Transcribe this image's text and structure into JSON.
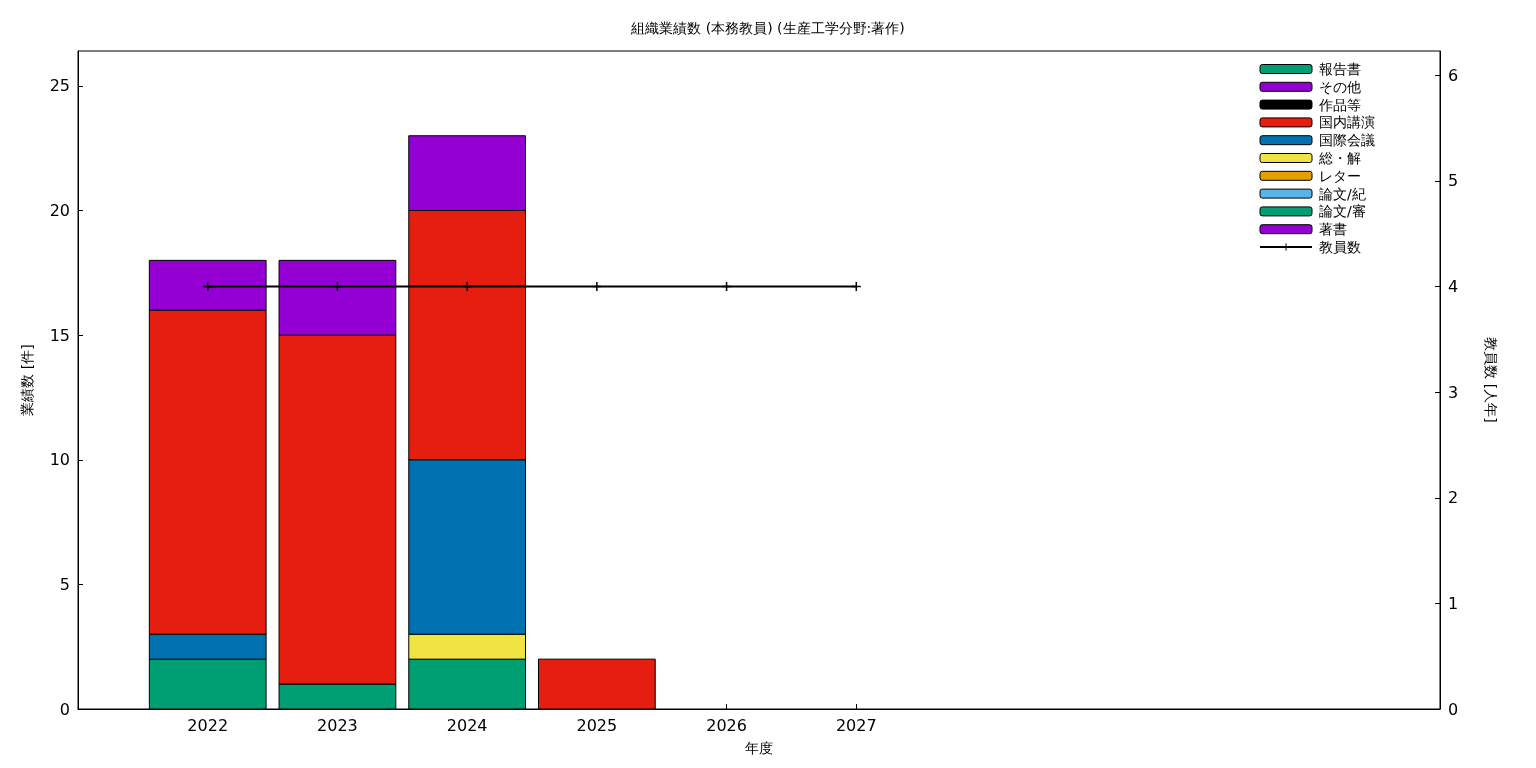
{
  "chart_data": {
    "type": "bar",
    "title": "組織業績数 (本務教員) (生産工学分野:著作)",
    "xlabel": "年度",
    "ylabel": "業績数 [件]",
    "y2label": "教員数 [人年]",
    "x": [
      2022,
      2023,
      2024,
      2025,
      2026,
      2027
    ],
    "xlim": [
      2021,
      2031.5
    ],
    "xticks": [
      2022,
      2023,
      2024,
      2025,
      2026,
      2027
    ],
    "ylim": [
      0,
      26.4
    ],
    "yticks": [
      0,
      5,
      10,
      15,
      20,
      25
    ],
    "y2lim": [
      0,
      6.23
    ],
    "y2ticks": [
      0,
      1,
      2,
      3,
      4,
      5,
      6
    ],
    "stacked": true,
    "grid": false,
    "legend": "top right",
    "series": [
      {
        "name": "著書",
        "color": "#9400d3",
        "values": [
          0,
          0,
          0,
          0,
          0,
          0
        ]
      },
      {
        "name": "論文/審",
        "color": "#009e73",
        "values": [
          2,
          1,
          2,
          0,
          0,
          0
        ]
      },
      {
        "name": "論文/紀",
        "color": "#56b4e9",
        "values": [
          0,
          0,
          0,
          0,
          0,
          0
        ]
      },
      {
        "name": "レター",
        "color": "#e69f00",
        "values": [
          0,
          0,
          0,
          0,
          0,
          0
        ]
      },
      {
        "name": "総・解",
        "color": "#f0e442",
        "values": [
          0,
          0,
          1,
          0,
          0,
          0
        ]
      },
      {
        "name": "国際会議",
        "color": "#0072b2",
        "values": [
          1,
          0,
          7,
          0,
          0,
          0
        ]
      },
      {
        "name": "国内講演",
        "color": "#e51e10",
        "values": [
          13,
          14,
          10,
          2,
          0,
          0
        ]
      },
      {
        "name": "作品等",
        "color": "#000000",
        "values": [
          0,
          0,
          0,
          0,
          0,
          0
        ]
      },
      {
        "name": "その他",
        "color": "#9400d3",
        "values": [
          2,
          3,
          3,
          0,
          0,
          0
        ]
      },
      {
        "name": "報告書",
        "color": "#009e73",
        "values": [
          0,
          0,
          0,
          0,
          0,
          0
        ]
      },
      {
        "name": "教員数",
        "type": "line",
        "axis": "y2",
        "color": "#000000",
        "marker": "cross",
        "line_style": "solid",
        "values": [
          4,
          4,
          4,
          4,
          4,
          4
        ]
      }
    ]
  }
}
